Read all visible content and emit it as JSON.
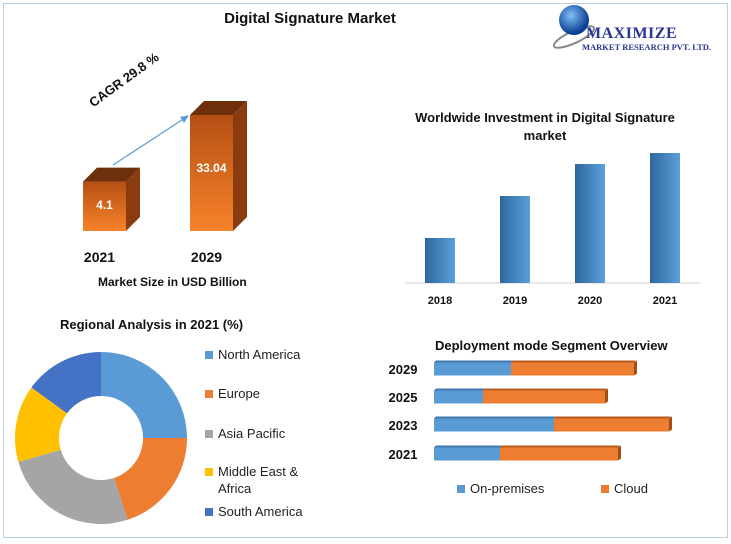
{
  "page_title": "Digital Signature Market",
  "logo": {
    "name": "MAXIMIZE",
    "subtitle": "MARKET RESEARCH PVT. LTD."
  },
  "chart_data": [
    {
      "type": "bar",
      "title": "",
      "categories": [
        "2021",
        "2029"
      ],
      "values": [
        4.1,
        33.04
      ],
      "data_labels": [
        "4.1",
        "33.04"
      ],
      "xlabel": "Market Size in USD Billion",
      "annotation": "CAGR 29.8 %",
      "color": "#e8701f",
      "style": "3d"
    },
    {
      "type": "bar",
      "title": "Worldwide Investment in Digital Signature market",
      "categories": [
        "2018",
        "2019",
        "2020",
        "2021"
      ],
      "values": [
        45,
        87,
        119,
        130
      ],
      "color": "#3f86c6",
      "grid": false
    },
    {
      "type": "pie",
      "title": "Regional Analysis in 2021 (%)",
      "donut": true,
      "labels": [
        "North America",
        "Europe",
        "Asia Pacific",
        "Middle East & Africa",
        "South America"
      ],
      "values": [
        25,
        20,
        25.5,
        14.5,
        15
      ],
      "colors": [
        "#5b9bd5",
        "#ed7d31",
        "#a5a5a5",
        "#ffc000",
        "#4472c4"
      ],
      "legend": "right"
    },
    {
      "type": "bar",
      "orientation": "horizontal",
      "stacked": true,
      "title": "Deployment mode Segment Overview",
      "categories": [
        "2029",
        "2025",
        "2023",
        "2021"
      ],
      "series": [
        {
          "name": "On-premises",
          "values": [
            77,
            49,
            120,
            66
          ],
          "color": "#5b9bd5"
        },
        {
          "name": "Cloud",
          "values": [
            123,
            122,
            115,
            118
          ],
          "color": "#ed7d31"
        }
      ],
      "legend": "bottom"
    }
  ]
}
